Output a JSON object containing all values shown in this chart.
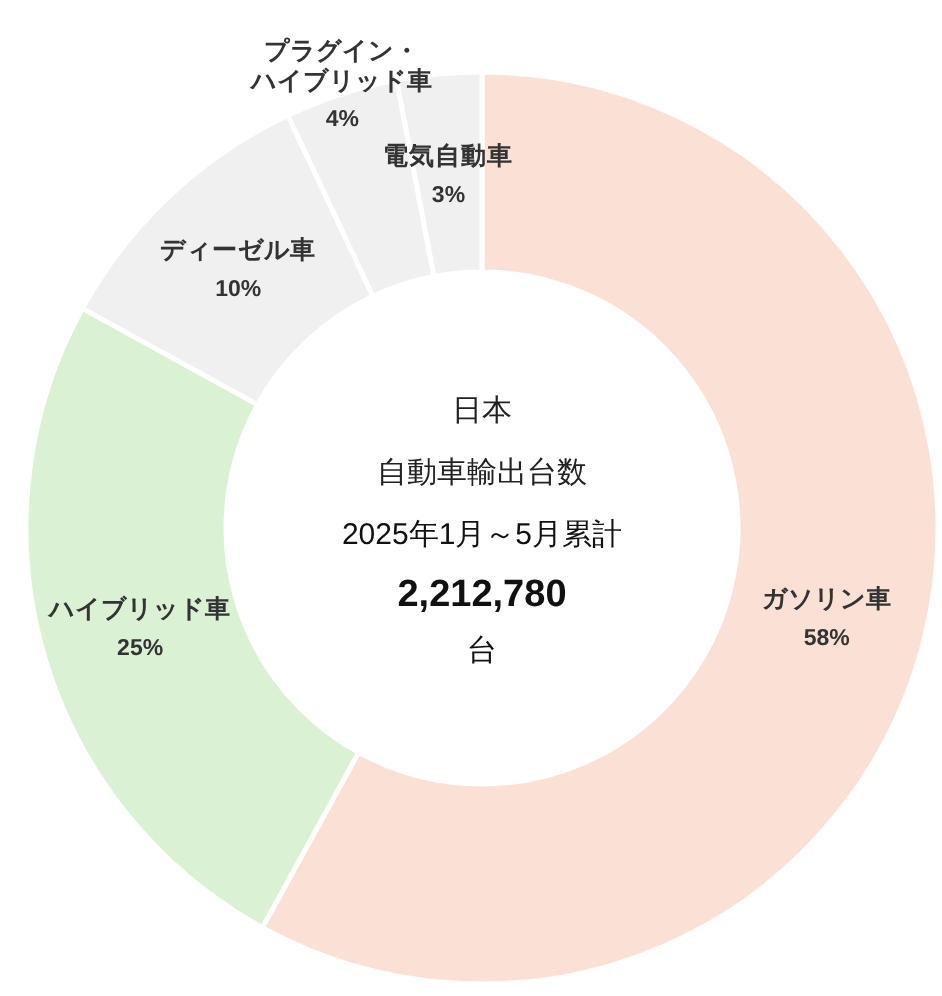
{
  "chart_data": {
    "type": "donut",
    "title": "日本",
    "subtitle": "自動車輸出台数",
    "annotations": [
      "2025年1月～5月累計",
      "2,212,780",
      "台"
    ],
    "categories": [
      "ガソリン車",
      "ハイブリッド車",
      "ディーゼル車",
      "プラグイン・ハイブリッド車",
      "電気自動車"
    ],
    "values": [
      58,
      25,
      10,
      4,
      3
    ],
    "value_labels": [
      "58%",
      "25%",
      "10%",
      "4%",
      "3%"
    ],
    "colors": [
      "#fbe1d5",
      "#daf1d4",
      "#f0f0f0",
      "#f0f0f0",
      "#f0f0f0"
    ]
  }
}
